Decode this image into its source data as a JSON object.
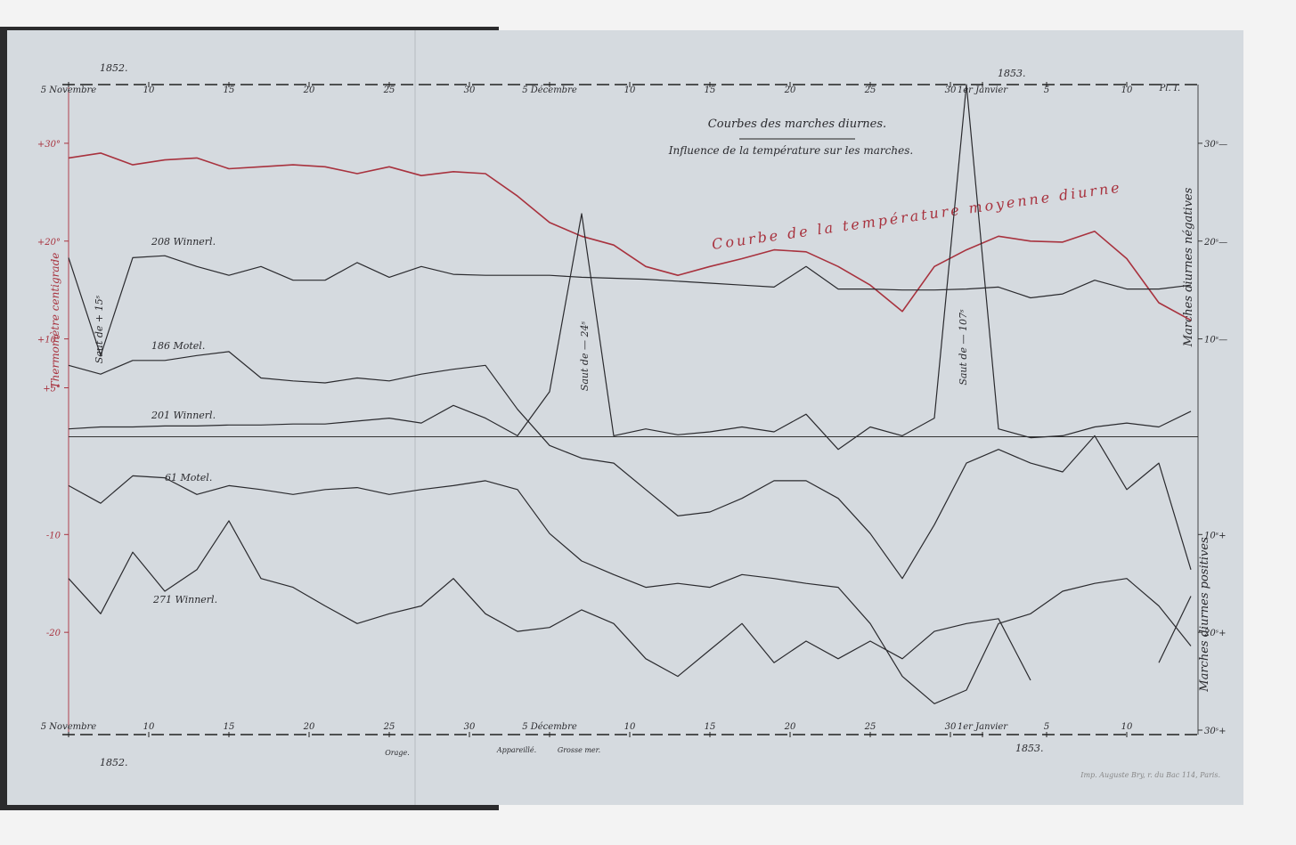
{
  "chart_data": {
    "type": "line",
    "title": "Courbes des marches diurnes.",
    "subtitle": "Influence de la température sur les marches.",
    "plate": "Pl. I.",
    "imprint": "Imp. Auguste Bry, r. du Bac 114, Paris.",
    "year_labels": [
      "1852.",
      "1853."
    ],
    "y_label": "Thermomètre centigrade",
    "y2_label_top": "Marches diurnes négatives",
    "y2_label_bottom": "Marches diurnes positives",
    "annotations": [
      "Courbe de la température moyenne diurne",
      "Saut de + 15ˢ",
      "Saut de — 24ˢ",
      "Saut de — 107ˢ",
      "Orage.",
      "Appareillé.",
      "Grosse mer."
    ],
    "x": [
      0,
      2,
      4,
      6,
      8,
      10,
      12,
      14,
      16,
      18,
      20,
      22,
      24,
      26,
      28,
      30,
      32,
      34,
      36,
      38,
      40,
      42,
      44,
      46,
      48,
      50,
      52,
      54,
      56,
      58,
      60,
      62,
      64,
      66,
      68,
      70
    ],
    "xlim": [
      0,
      70
    ],
    "xticks": [
      {
        "value": 0,
        "label": "5 Novembre"
      },
      {
        "value": 5,
        "label": "10"
      },
      {
        "value": 10,
        "label": "15"
      },
      {
        "value": 15,
        "label": "20"
      },
      {
        "value": 20,
        "label": "25"
      },
      {
        "value": 25,
        "label": "30"
      },
      {
        "value": 30,
        "label": "5 Décembre"
      },
      {
        "value": 35,
        "label": "10"
      },
      {
        "value": 40,
        "label": "15"
      },
      {
        "value": 45,
        "label": "20"
      },
      {
        "value": 50,
        "label": "25"
      },
      {
        "value": 55,
        "label": "30"
      },
      {
        "value": 57,
        "label": "1er Janvier"
      },
      {
        "value": 61,
        "label": "5"
      },
      {
        "value": 66,
        "label": "10"
      }
    ],
    "ylim": [
      -30,
      36
    ],
    "yticks": [
      {
        "value": 30,
        "label": "+30°"
      },
      {
        "value": 20,
        "label": "+20°"
      },
      {
        "value": 10,
        "label": "+10°"
      },
      {
        "value": 5,
        "label": "+5°"
      },
      -10,
      -20
    ],
    "y2lim": [
      30,
      -36
    ],
    "y2ticks": [
      {
        "value": -30,
        "label": "30ˢ—"
      },
      {
        "value": -20,
        "label": "20ˢ—"
      },
      {
        "value": -10,
        "label": "10ˢ—"
      },
      {
        "value": 10,
        "label": "10ˢ+"
      },
      {
        "value": 20,
        "label": "20ˢ+"
      },
      {
        "value": 30,
        "label": "30ˢ+"
      }
    ],
    "series": [
      {
        "name": "Courbe de la température moyenne diurne",
        "color": "#a8323e",
        "values": [
          28.5,
          29.0,
          27.8,
          28.3,
          28.5,
          27.4,
          27.6,
          27.8,
          27.6,
          26.9,
          27.6,
          26.7,
          27.1,
          26.9,
          24.6,
          21.9,
          20.5,
          19.6,
          17.4,
          16.5,
          17.4,
          18.2,
          19.1,
          18.9,
          17.4,
          15.5,
          12.8,
          17.4,
          19.1,
          20.5,
          20.0,
          19.9,
          21.0,
          18.2,
          13.7,
          11.9
        ]
      },
      {
        "name": "208 Winnerl.",
        "color": "#2a2a2e",
        "axis": "y2",
        "values": [
          -18.3,
          -8.3,
          -18.3,
          -18.5,
          -17.4,
          -16.5,
          -17.4,
          -16.0,
          -16.0,
          -17.8,
          -16.3,
          -17.4,
          -16.6,
          -16.5,
          -16.5,
          -16.5,
          -16.3,
          -16.2,
          -16.1,
          -15.9,
          -15.7,
          -15.5,
          -15.3,
          -17.4,
          -15.1,
          -15.1,
          -15.0,
          -15.0,
          -15.1,
          -15.3,
          -14.2,
          -14.6,
          -16.0,
          -15.1,
          -15.1,
          -15.5
        ]
      },
      {
        "name": "186 Motel.",
        "color": "#2a2a2e",
        "axis": "y2",
        "values": [
          -7.3,
          -6.4,
          -7.8,
          -7.8,
          -8.3,
          -8.7,
          -6.0,
          -5.7,
          -5.5,
          -6.0,
          -5.7,
          -6.4,
          -6.9,
          -7.3,
          -2.8,
          0.9,
          2.2,
          2.7,
          5.4,
          8.1,
          7.7,
          6.3,
          4.5,
          4.5,
          6.3,
          9.9,
          14.5,
          9.0,
          2.7,
          1.3,
          2.7,
          3.6,
          -0.1,
          5.4,
          2.7,
          13.6
        ]
      },
      {
        "name": "201 Winnerl.",
        "color": "#2a2a2e",
        "axis": "y2",
        "values": [
          -0.8,
          -1.0,
          -1.0,
          -1.1,
          -1.1,
          -1.2,
          -1.2,
          -1.3,
          -1.3,
          -1.6,
          -1.9,
          -1.4,
          -3.2,
          -1.9,
          -0.1,
          -4.6,
          -22.8,
          -0.1,
          -0.8,
          -0.2,
          -0.5,
          -1.0,
          -0.5,
          -2.3,
          1.3,
          -1.0,
          -0.1,
          -1.9,
          -36.0,
          -0.8,
          0.1,
          -0.1,
          -1.0,
          -1.4,
          -1.0,
          -2.6
        ]
      },
      {
        "name": "61 Motel.",
        "color": "#2a2a2e",
        "axis": "y2",
        "values": [
          5.0,
          6.8,
          4.0,
          4.2,
          5.9,
          5.0,
          5.4,
          5.9,
          5.4,
          5.2,
          5.9,
          5.4,
          5.0,
          4.5,
          5.4,
          9.9,
          12.7,
          14.1,
          15.4,
          15.0,
          15.4,
          14.1,
          14.5,
          15.0,
          15.4,
          19.1,
          24.5,
          27.3,
          25.9,
          19.1,
          18.1,
          15.8,
          15.0,
          14.5,
          17.3,
          21.4
        ]
      },
      {
        "name": "271 Winnerl.",
        "color": "#2a2a2e",
        "axis": "y2",
        "values": [
          14.5,
          18.1,
          11.8,
          15.8,
          13.6,
          8.6,
          14.5,
          15.4,
          17.3,
          19.1,
          18.1,
          17.3,
          14.5,
          18.1,
          19.9,
          19.5,
          17.7,
          19.1,
          22.7,
          24.5,
          21.8,
          19.1,
          23.1,
          20.9,
          22.7,
          20.9,
          22.7,
          19.9,
          19.1,
          18.6,
          24.9,
          null,
          null,
          null,
          23.1,
          16.3
        ]
      }
    ]
  }
}
